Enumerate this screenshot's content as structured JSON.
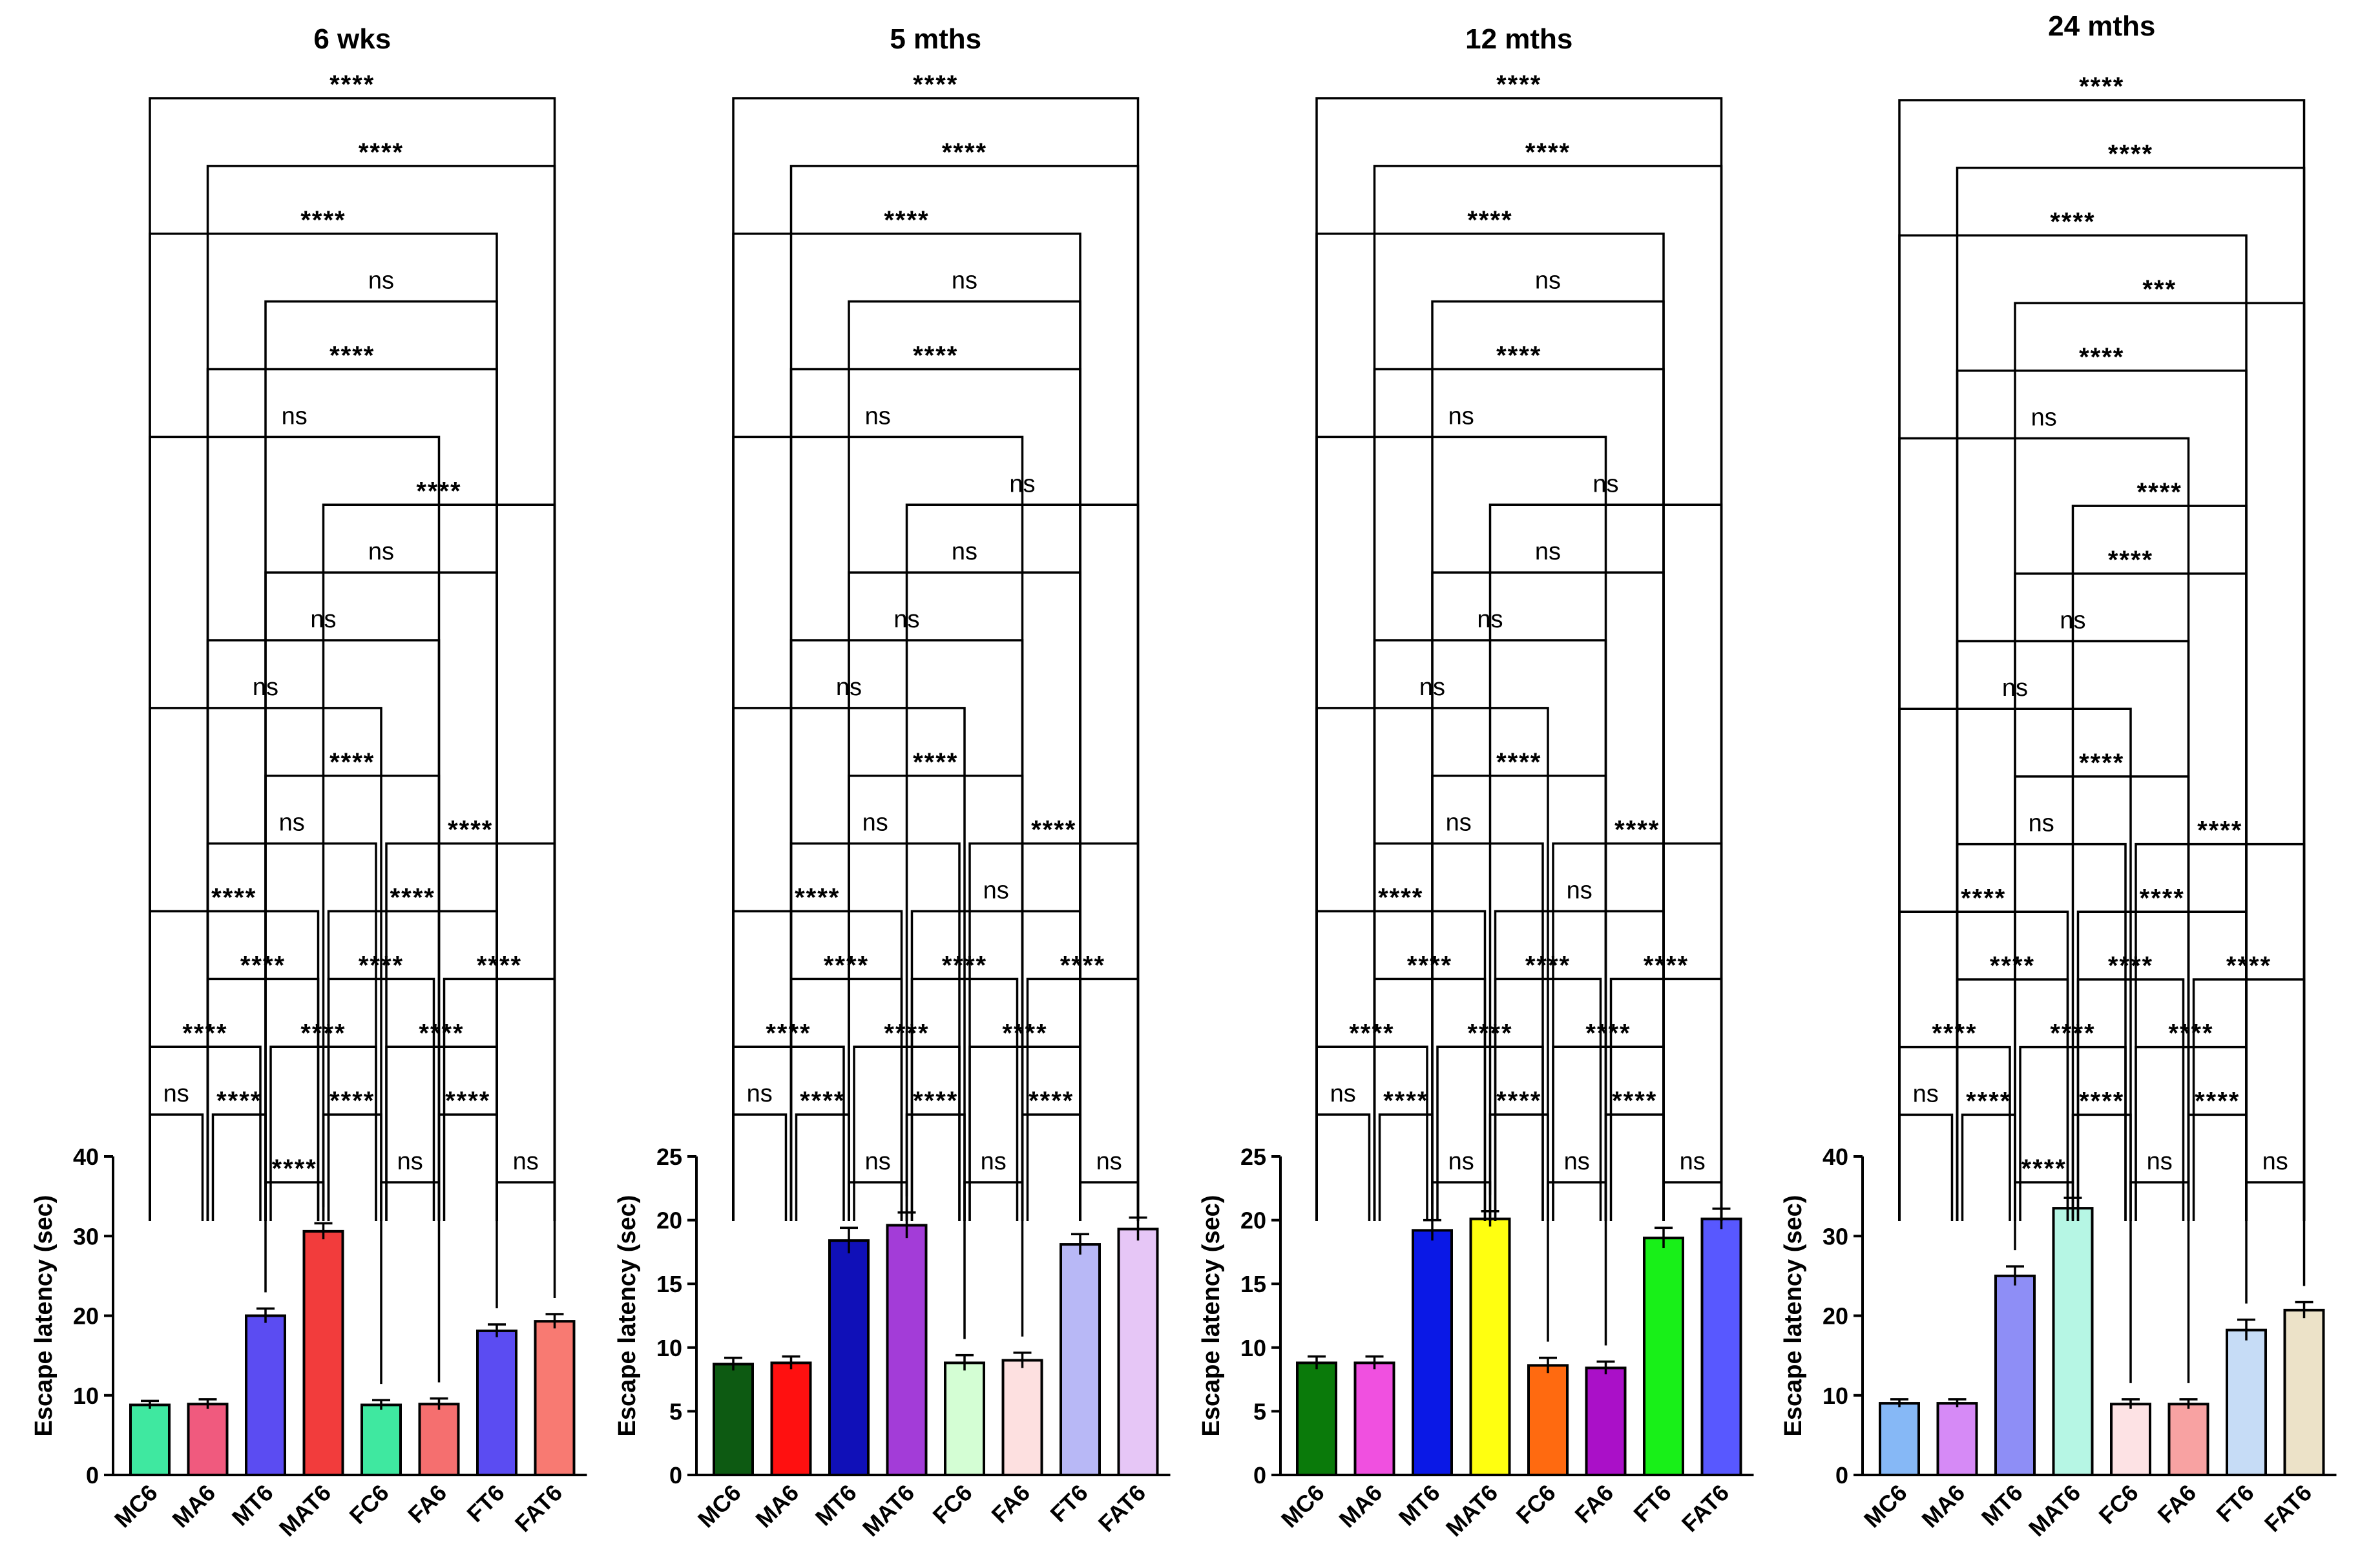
{
  "chart_data": [
    {
      "type": "bar",
      "title": "6 wks",
      "ylabel": "Escape latency (sec)",
      "ylim": [
        0,
        40
      ],
      "yticks": [
        0,
        10,
        20,
        30,
        40
      ],
      "categories": [
        "MC6",
        "MA6",
        "MT6",
        "MAT6",
        "FC6",
        "FA6",
        "FT6",
        "FAT6"
      ],
      "values": [
        8.8,
        8.9,
        20.0,
        30.6,
        8.8,
        8.9,
        18.1,
        19.3
      ],
      "errors": [
        0.5,
        0.6,
        0.9,
        1.0,
        0.6,
        0.7,
        0.8,
        0.9
      ],
      "colors": [
        "#3fe8a0",
        "#f05a7e",
        "#5b4cf2",
        "#f23c3c",
        "#3fe8a0",
        "#f56f6f",
        "#5b4cf2",
        "#f87a72"
      ],
      "comparisons": [
        {
          "a": 0,
          "b": 7,
          "label": "****"
        },
        {
          "a": 1,
          "b": 7,
          "label": "****"
        },
        {
          "a": 0,
          "b": 6,
          "label": "****"
        },
        {
          "a": 2,
          "b": 6,
          "label": "ns"
        },
        {
          "a": 1,
          "b": 6,
          "label": "****"
        },
        {
          "a": 0,
          "b": 5,
          "label": "ns"
        },
        {
          "a": 3,
          "b": 7,
          "label": "****"
        },
        {
          "a": 2,
          "b": 6,
          "label": "ns"
        },
        {
          "a": 1,
          "b": 5,
          "label": "ns"
        },
        {
          "a": 0,
          "b": 4,
          "label": "ns"
        },
        {
          "a": 2,
          "b": 5,
          "label": "****"
        },
        {
          "a": 1,
          "b": 4,
          "label": "ns"
        },
        {
          "a": 4,
          "b": 7,
          "label": "****"
        },
        {
          "a": 0,
          "b": 3,
          "label": "****"
        },
        {
          "a": 3,
          "b": 6,
          "label": "****"
        },
        {
          "a": 1,
          "b": 3,
          "label": "****"
        },
        {
          "a": 3,
          "b": 5,
          "label": "****"
        },
        {
          "a": 5,
          "b": 7,
          "label": "****"
        },
        {
          "a": 0,
          "b": 2,
          "label": "****"
        },
        {
          "a": 2,
          "b": 4,
          "label": "****"
        },
        {
          "a": 4,
          "b": 6,
          "label": "****"
        },
        {
          "a": 1,
          "b": 2,
          "label": "****"
        },
        {
          "a": 3,
          "b": 4,
          "label": "****"
        },
        {
          "a": 5,
          "b": 6,
          "label": "****"
        },
        {
          "a": 0,
          "b": 1,
          "label": "ns"
        },
        {
          "a": 2,
          "b": 3,
          "label": "****"
        },
        {
          "a": 4,
          "b": 5,
          "label": "ns"
        },
        {
          "a": 6,
          "b": 7,
          "label": "ns"
        }
      ]
    },
    {
      "type": "bar",
      "title": "5 mths",
      "ylabel": "Escape latency (sec)",
      "ylim": [
        0,
        25
      ],
      "yticks": [
        0,
        5,
        10,
        15,
        20,
        25
      ],
      "categories": [
        "MC6",
        "MA6",
        "MT6",
        "MAT6",
        "FC6",
        "FA6",
        "FT6",
        "FAT6"
      ],
      "values": [
        8.7,
        8.8,
        18.4,
        19.6,
        8.8,
        9.0,
        18.1,
        19.3
      ],
      "errors": [
        0.5,
        0.5,
        1.0,
        1.0,
        0.6,
        0.6,
        0.8,
        0.9
      ],
      "colors": [
        "#0d5a12",
        "#ff1010",
        "#1010b8",
        "#a33cd8",
        "#d4fed4",
        "#fde0e0",
        "#b8b8f6",
        "#e6c6f6"
      ],
      "comparisons": [
        {
          "a": 0,
          "b": 7,
          "label": "****"
        },
        {
          "a": 1,
          "b": 7,
          "label": "****"
        },
        {
          "a": 0,
          "b": 6,
          "label": "****"
        },
        {
          "a": 2,
          "b": 6,
          "label": "ns"
        },
        {
          "a": 1,
          "b": 6,
          "label": "****"
        },
        {
          "a": 0,
          "b": 5,
          "label": "ns"
        },
        {
          "a": 3,
          "b": 7,
          "label": "ns"
        },
        {
          "a": 2,
          "b": 6,
          "label": "ns"
        },
        {
          "a": 1,
          "b": 5,
          "label": "ns"
        },
        {
          "a": 0,
          "b": 4,
          "label": "ns"
        },
        {
          "a": 2,
          "b": 5,
          "label": "****"
        },
        {
          "a": 1,
          "b": 4,
          "label": "ns"
        },
        {
          "a": 4,
          "b": 7,
          "label": "****"
        },
        {
          "a": 0,
          "b": 3,
          "label": "****"
        },
        {
          "a": 3,
          "b": 6,
          "label": "ns"
        },
        {
          "a": 1,
          "b": 3,
          "label": "****"
        },
        {
          "a": 3,
          "b": 5,
          "label": "****"
        },
        {
          "a": 5,
          "b": 7,
          "label": "****"
        },
        {
          "a": 0,
          "b": 2,
          "label": "****"
        },
        {
          "a": 2,
          "b": 4,
          "label": "****"
        },
        {
          "a": 4,
          "b": 6,
          "label": "****"
        },
        {
          "a": 1,
          "b": 2,
          "label": "****"
        },
        {
          "a": 3,
          "b": 4,
          "label": "****"
        },
        {
          "a": 5,
          "b": 6,
          "label": "****"
        },
        {
          "a": 0,
          "b": 1,
          "label": "ns"
        },
        {
          "a": 2,
          "b": 3,
          "label": "ns"
        },
        {
          "a": 4,
          "b": 5,
          "label": "ns"
        },
        {
          "a": 6,
          "b": 7,
          "label": "ns"
        }
      ]
    },
    {
      "type": "bar",
      "title": "12 mths",
      "ylabel": "Escape latency (sec)",
      "ylim": [
        0,
        25
      ],
      "yticks": [
        0,
        5,
        10,
        15,
        20,
        25
      ],
      "categories": [
        "MC6",
        "MA6",
        "MT6",
        "MAT6",
        "FC6",
        "FA6",
        "FT6",
        "FAT6"
      ],
      "values": [
        8.8,
        8.8,
        19.2,
        20.1,
        8.6,
        8.4,
        18.6,
        20.1
      ],
      "errors": [
        0.5,
        0.5,
        0.8,
        0.6,
        0.6,
        0.5,
        0.8,
        0.8
      ],
      "colors": [
        "#0a7a0a",
        "#f050e0",
        "#0a18e6",
        "#ffff10",
        "#ff6a10",
        "#aa10c8",
        "#18f018",
        "#5858ff"
      ],
      "comparisons": [
        {
          "a": 0,
          "b": 7,
          "label": "****"
        },
        {
          "a": 1,
          "b": 7,
          "label": "****"
        },
        {
          "a": 0,
          "b": 6,
          "label": "****"
        },
        {
          "a": 2,
          "b": 6,
          "label": "ns"
        },
        {
          "a": 1,
          "b": 6,
          "label": "****"
        },
        {
          "a": 0,
          "b": 5,
          "label": "ns"
        },
        {
          "a": 3,
          "b": 7,
          "label": "ns"
        },
        {
          "a": 2,
          "b": 6,
          "label": "ns"
        },
        {
          "a": 1,
          "b": 5,
          "label": "ns"
        },
        {
          "a": 0,
          "b": 4,
          "label": "ns"
        },
        {
          "a": 2,
          "b": 5,
          "label": "****"
        },
        {
          "a": 1,
          "b": 4,
          "label": "ns"
        },
        {
          "a": 4,
          "b": 7,
          "label": "****"
        },
        {
          "a": 0,
          "b": 3,
          "label": "****"
        },
        {
          "a": 3,
          "b": 6,
          "label": "ns"
        },
        {
          "a": 1,
          "b": 3,
          "label": "****"
        },
        {
          "a": 3,
          "b": 5,
          "label": "****"
        },
        {
          "a": 5,
          "b": 7,
          "label": "****"
        },
        {
          "a": 0,
          "b": 2,
          "label": "****"
        },
        {
          "a": 2,
          "b": 4,
          "label": "****"
        },
        {
          "a": 4,
          "b": 6,
          "label": "****"
        },
        {
          "a": 1,
          "b": 2,
          "label": "****"
        },
        {
          "a": 3,
          "b": 4,
          "label": "****"
        },
        {
          "a": 5,
          "b": 6,
          "label": "****"
        },
        {
          "a": 0,
          "b": 1,
          "label": "ns"
        },
        {
          "a": 2,
          "b": 3,
          "label": "ns"
        },
        {
          "a": 4,
          "b": 5,
          "label": "ns"
        },
        {
          "a": 6,
          "b": 7,
          "label": "ns"
        }
      ]
    },
    {
      "type": "bar",
      "title": "24 mths",
      "ylabel": "Escape latency (sec)",
      "ylim": [
        0,
        40
      ],
      "yticks": [
        0,
        10,
        20,
        30,
        40
      ],
      "categories": [
        "MC6",
        "MA6",
        "MT6",
        "MAT6",
        "FC6",
        "FA6",
        "FT6",
        "FAT6"
      ],
      "values": [
        9.0,
        9.0,
        25.0,
        33.5,
        8.9,
        8.9,
        18.2,
        20.7
      ],
      "errors": [
        0.5,
        0.5,
        1.2,
        1.3,
        0.6,
        0.6,
        1.3,
        1.0
      ],
      "colors": [
        "#86b8f6",
        "#d68af6",
        "#8e8ef6",
        "#b6f6e4",
        "#fde2e4",
        "#f8a2a2",
        "#c6dcf6",
        "#ece2c8"
      ],
      "comparisons": [
        {
          "a": 0,
          "b": 7,
          "label": "****"
        },
        {
          "a": 1,
          "b": 7,
          "label": "****"
        },
        {
          "a": 0,
          "b": 6,
          "label": "****"
        },
        {
          "a": 2,
          "b": 7,
          "label": "***"
        },
        {
          "a": 1,
          "b": 6,
          "label": "****"
        },
        {
          "a": 0,
          "b": 5,
          "label": "ns"
        },
        {
          "a": 3,
          "b": 6,
          "label": "****"
        },
        {
          "a": 2,
          "b": 6,
          "label": "****"
        },
        {
          "a": 1,
          "b": 5,
          "label": "ns"
        },
        {
          "a": 0,
          "b": 4,
          "label": "ns"
        },
        {
          "a": 2,
          "b": 5,
          "label": "****"
        },
        {
          "a": 4,
          "b": 7,
          "label": "****"
        },
        {
          "a": 1,
          "b": 4,
          "label": "ns"
        },
        {
          "a": 0,
          "b": 3,
          "label": "****"
        },
        {
          "a": 3,
          "b": 6,
          "label": "****"
        },
        {
          "a": 1,
          "b": 3,
          "label": "****"
        },
        {
          "a": 3,
          "b": 5,
          "label": "****"
        },
        {
          "a": 5,
          "b": 7,
          "label": "****"
        },
        {
          "a": 0,
          "b": 2,
          "label": "****"
        },
        {
          "a": 2,
          "b": 4,
          "label": "****"
        },
        {
          "a": 4,
          "b": 6,
          "label": "****"
        },
        {
          "a": 1,
          "b": 2,
          "label": "****"
        },
        {
          "a": 3,
          "b": 4,
          "label": "****"
        },
        {
          "a": 5,
          "b": 6,
          "label": "****"
        },
        {
          "a": 0,
          "b": 1,
          "label": "ns"
        },
        {
          "a": 2,
          "b": 3,
          "label": "****"
        },
        {
          "a": 4,
          "b": 5,
          "label": "ns"
        },
        {
          "a": 6,
          "b": 7,
          "label": "ns"
        }
      ]
    }
  ]
}
